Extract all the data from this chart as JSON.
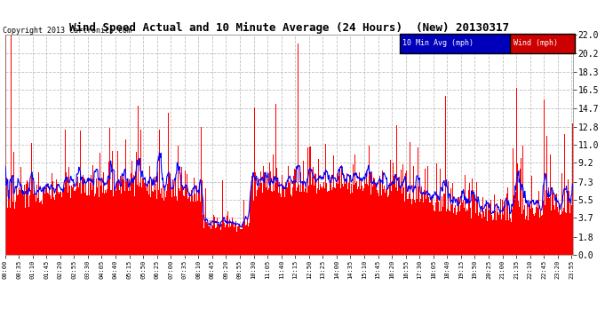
{
  "title": "Wind Speed Actual and 10 Minute Average (24 Hours)  (New) 20130317",
  "copyright": "Copyright 2013 Cartronics.com",
  "yticks": [
    0.0,
    1.8,
    3.7,
    5.5,
    7.3,
    9.2,
    11.0,
    12.8,
    14.7,
    16.5,
    18.3,
    20.2,
    22.0
  ],
  "ymin": 0.0,
  "ymax": 22.0,
  "bar_color": "#FF0000",
  "avg_color": "#0000FF",
  "bg_color": "#FFFFFF",
  "grid_color": "#C0C0C0",
  "legend_avg_bg": "#0000BB",
  "legend_wind_bg": "#CC0000",
  "legend_avg_text": "10 Min Avg (mph)",
  "legend_wind_text": "Wind (mph)",
  "n_points": 1440,
  "seed": 12345
}
